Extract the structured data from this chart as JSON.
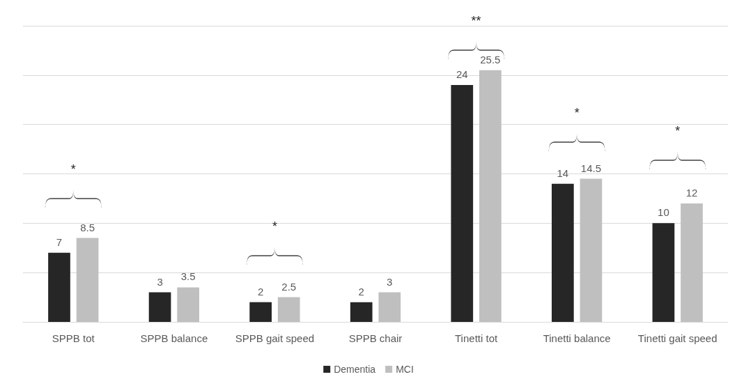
{
  "chart_data": {
    "type": "bar",
    "categories": [
      "SPPB tot",
      "SPPB balance",
      "SPPB gait speed",
      "SPPB chair",
      "Tinetti tot",
      "Tinetti balance",
      "Tinetti gait speed"
    ],
    "series": [
      {
        "name": "Dementia",
        "color": "#262626",
        "values": [
          7,
          3,
          2,
          2,
          24,
          14,
          10
        ]
      },
      {
        "name": "MCI",
        "color": "#bfbfbf",
        "values": [
          8.5,
          3.5,
          2.5,
          3,
          25.5,
          14.5,
          12
        ]
      }
    ],
    "data_labels": true,
    "ylim": [
      0,
      30
    ],
    "yticks": [
      {
        "value": 0,
        "label": null
      },
      {
        "value": 5,
        "label": null
      },
      {
        "value": 10,
        "label": null
      },
      {
        "value": 15,
        "label": null
      },
      {
        "value": 20,
        "label": null
      },
      {
        "value": 25,
        "label": null
      },
      {
        "value": 30,
        "label": null
      }
    ],
    "tick_labels": "x",
    "grid": "y",
    "legend": "bottom",
    "annotations": [
      "*",
      "*",
      "**",
      "*",
      "*"
    ]
  }
}
